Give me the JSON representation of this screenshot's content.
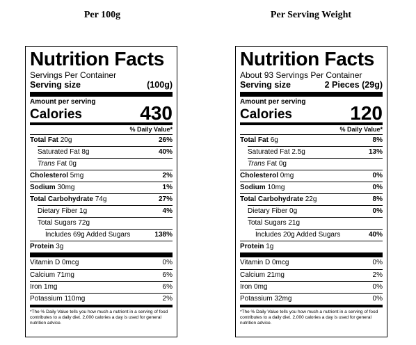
{
  "headings": {
    "left": "Per 100g",
    "right": "Per Serving Weight"
  },
  "labels": [
    {
      "title": "Nutrition Facts",
      "servings": "Servings Per Container",
      "serving_size_label": "Serving size",
      "serving_size_value": "(100g)",
      "amount_per_serving": "Amount per serving",
      "calories_label": "Calories",
      "calories_value": "430",
      "dv_header": "% Daily Value*",
      "total_fat": {
        "label": "Total Fat",
        "amount": "20g",
        "dv": "26%"
      },
      "sat_fat": {
        "label": "Saturated Fat 8g",
        "dv": "40%"
      },
      "trans_fat": {
        "label": "Trans",
        "rest": "Fat 0g"
      },
      "cholesterol": {
        "label": "Cholesterol",
        "amount": "5mg",
        "dv": "2%"
      },
      "sodium": {
        "label": "Sodium",
        "amount": "30mg",
        "dv": "1%"
      },
      "carb": {
        "label": "Total Carbohydrate",
        "amount": "74g",
        "dv": "27%"
      },
      "fiber": {
        "label": "Dietary Fiber 1g",
        "dv": "4%"
      },
      "sugars": {
        "label": "Total Sugars 72g"
      },
      "added_sugars": {
        "label": "Includes 69g Added Sugars",
        "dv": "138%"
      },
      "protein": {
        "label": "Protein",
        "amount": "3g"
      },
      "vitamins": [
        {
          "label": "Vitamin D 0mcg",
          "dv": "0%"
        },
        {
          "label": "Calcium 71mg",
          "dv": "6%"
        },
        {
          "label": "Iron 1mg",
          "dv": "6%"
        },
        {
          "label": "Potassium 110mg",
          "dv": "2%"
        }
      ],
      "footnote": "*The % Daily Value tells you how much a nutrient in a serving of food contributes to a daily diet. 2,000 calories a day is used for general nutrition advice."
    },
    {
      "title": "Nutrition Facts",
      "servings": "About 93 Servings Per Container",
      "serving_size_label": "Serving size",
      "serving_size_value": "2 Pieces (29g)",
      "amount_per_serving": "Amount per serving",
      "calories_label": "Calories",
      "calories_value": "120",
      "dv_header": "% Daily Value*",
      "total_fat": {
        "label": "Total Fat",
        "amount": "6g",
        "dv": "8%"
      },
      "sat_fat": {
        "label": "Saturated Fat 2.5g",
        "dv": "13%"
      },
      "trans_fat": {
        "label": "Trans",
        "rest": "Fat 0g"
      },
      "cholesterol": {
        "label": "Cholesterol",
        "amount": "0mg",
        "dv": "0%"
      },
      "sodium": {
        "label": "Sodium",
        "amount": "10mg",
        "dv": "0%"
      },
      "carb": {
        "label": "Total Carbohydrate",
        "amount": "22g",
        "dv": "8%"
      },
      "fiber": {
        "label": "Dietary Fiber 0g",
        "dv": "0%"
      },
      "sugars": {
        "label": "Total Sugars 21g"
      },
      "added_sugars": {
        "label": "Includes 20g Added Sugars",
        "dv": "40%"
      },
      "protein": {
        "label": "Protein",
        "amount": "1g"
      },
      "vitamins": [
        {
          "label": "Vitamin D 0mcg",
          "dv": "0%"
        },
        {
          "label": "Calcium 21mg",
          "dv": "2%"
        },
        {
          "label": "Iron 0mg",
          "dv": "0%"
        },
        {
          "label": "Potassium 32mg",
          "dv": "0%"
        }
      ],
      "footnote": "*The % Daily Value tells you how much a nutrient in a serving of food contributes to a daily diet. 2,000 calories a day is used for general nutrition advice."
    }
  ]
}
